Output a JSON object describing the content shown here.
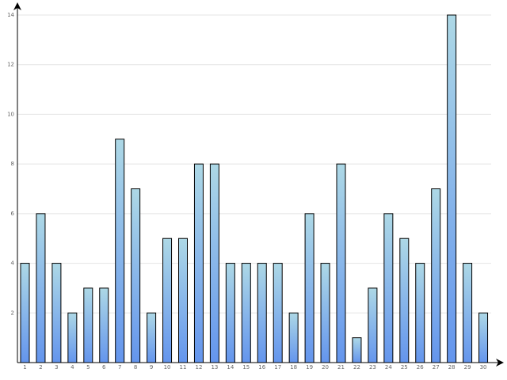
{
  "chart_data": {
    "type": "bar",
    "categories": [
      "1",
      "2",
      "3",
      "4",
      "5",
      "6",
      "7",
      "8",
      "9",
      "10",
      "11",
      "12",
      "13",
      "14",
      "15",
      "16",
      "17",
      "18",
      "19",
      "20",
      "21",
      "22",
      "23",
      "24",
      "25",
      "26",
      "27",
      "28",
      "29",
      "30"
    ],
    "values": [
      4,
      6,
      4,
      2,
      3,
      3,
      9,
      7,
      2,
      5,
      5,
      8,
      8,
      4,
      4,
      4,
      4,
      2,
      6,
      4,
      8,
      1,
      3,
      6,
      5,
      4,
      7,
      14,
      4,
      2
    ],
    "color_top": "#add8e6",
    "color_bottom": "#6495ed",
    "ylim": [
      0,
      14
    ],
    "yticks": [
      2,
      4,
      6,
      8,
      10,
      12,
      14
    ],
    "grid": true
  }
}
